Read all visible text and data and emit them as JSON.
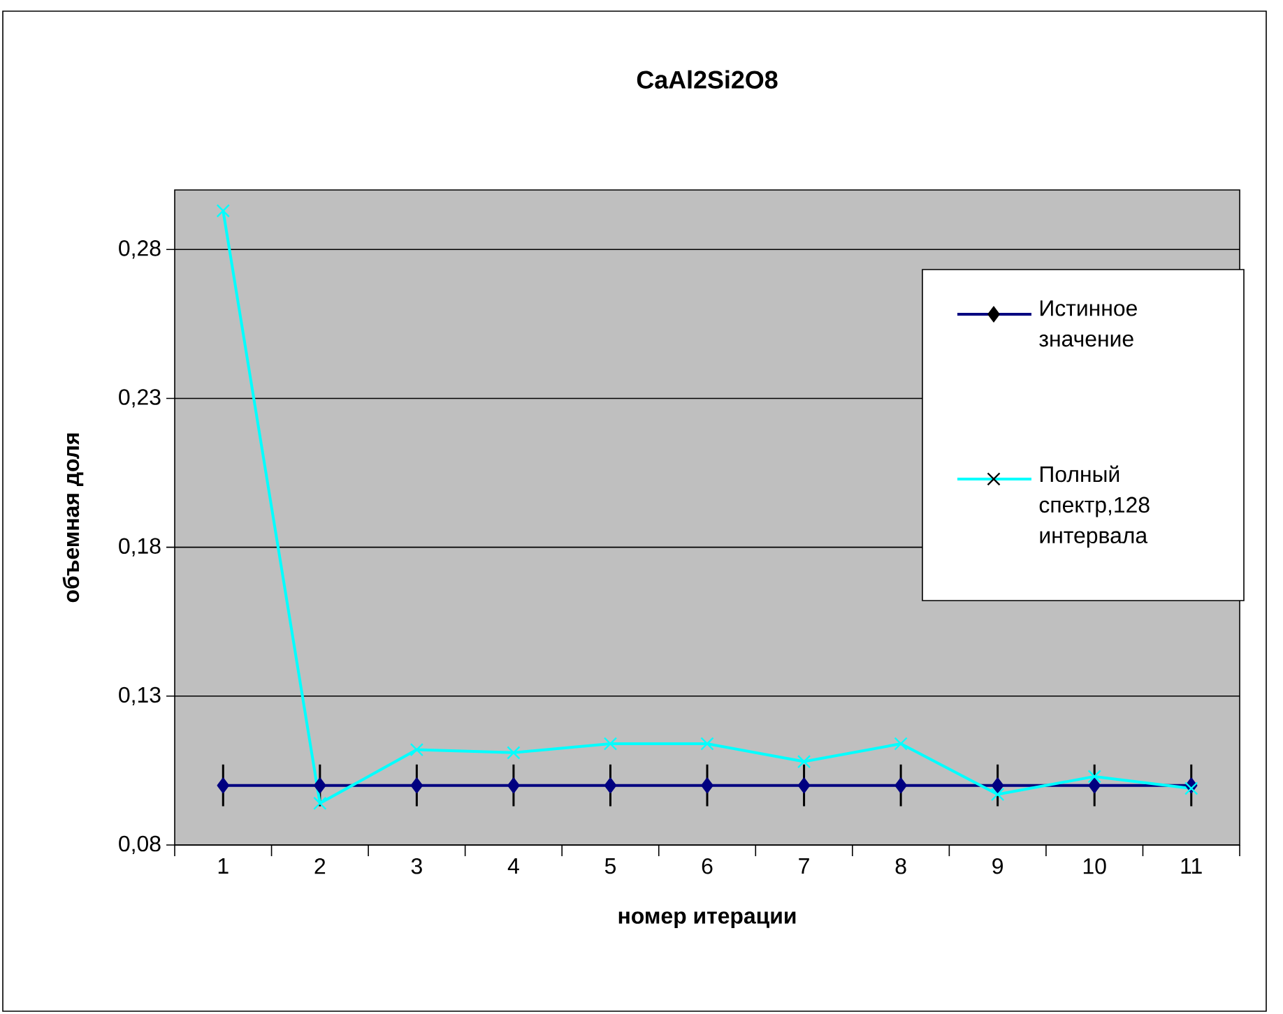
{
  "chart_data": {
    "type": "line",
    "title": "CaAl2Si2O8",
    "xlabel": "номер итерации",
    "ylabel": "объемная доля",
    "categories": [
      "1",
      "2",
      "3",
      "4",
      "5",
      "6",
      "7",
      "8",
      "9",
      "10",
      "11"
    ],
    "series": [
      {
        "name": "Истинное значение",
        "color": "#000080",
        "marker": "diamond",
        "values": [
          0.1,
          0.1,
          0.1,
          0.1,
          0.1,
          0.1,
          0.1,
          0.1,
          0.1,
          0.1,
          0.1
        ],
        "errors": [
          0.007,
          0.007,
          0.007,
          0.007,
          0.007,
          0.007,
          0.007,
          0.007,
          0.007,
          0.007,
          0.007
        ]
      },
      {
        "name": "Полный спектр,128 интервала",
        "color": "#00ffff",
        "marker": "cross",
        "values": [
          0.293,
          0.094,
          0.112,
          0.111,
          0.114,
          0.114,
          0.108,
          0.114,
          0.097,
          0.103,
          0.099
        ]
      }
    ],
    "ylim": [
      0.08,
      0.3
    ],
    "yticks": [
      {
        "value": 0.08,
        "label": "0,08"
      },
      {
        "value": 0.13,
        "label": "0,13"
      },
      {
        "value": 0.18,
        "label": "0,18"
      },
      {
        "value": 0.23,
        "label": "0,23"
      },
      {
        "value": 0.28,
        "label": "0,28"
      }
    ],
    "grid": "y",
    "legend": "right"
  }
}
